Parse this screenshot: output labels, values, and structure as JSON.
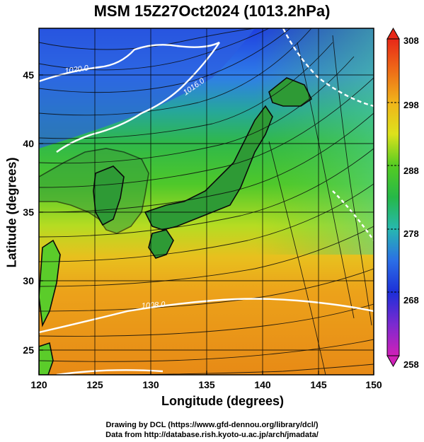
{
  "title": "MSM 15Z27Oct2024 (1013.2hPa)",
  "xlabel": "Longitude (degrees)",
  "ylabel": "Latitude  (degrees)",
  "credit_line1": "Drawing by DCL (https://www.gfd-dennou.org/library/dcl/)",
  "credit_line2": "Data from http://database.rish.kyoto-u.ac.jp/arch/jmadata/",
  "chart_data": {
    "type": "heatmap",
    "x_range": [
      120,
      150
    ],
    "y_range": [
      22.4,
      47.6
    ],
    "x_ticks": [
      "120",
      "125",
      "130",
      "135",
      "140",
      "145",
      "150"
    ],
    "y_ticks": [
      "25",
      "30",
      "35",
      "40",
      "45"
    ],
    "grid": true,
    "colorbar": {
      "range": [
        258,
        308
      ],
      "ticks": [
        "258",
        "268",
        "278",
        "288",
        "298",
        "308"
      ],
      "placement": "right"
    },
    "contour_labels": [
      "1020.0",
      "1016.0",
      "1008.0"
    ],
    "fields": [
      "temperature shading",
      "wind streamlines",
      "pressure contours"
    ]
  }
}
